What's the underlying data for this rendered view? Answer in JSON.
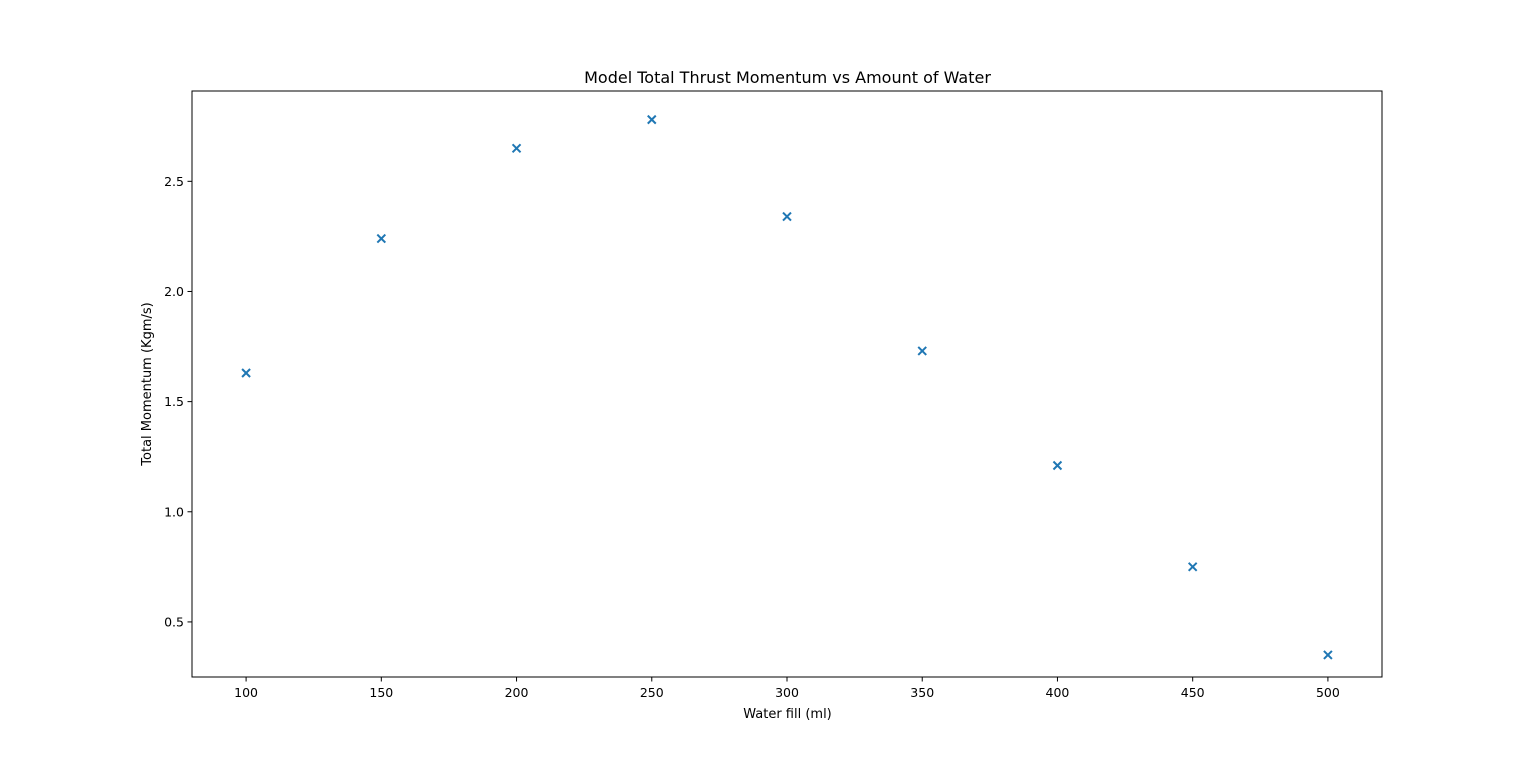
{
  "chart_data": {
    "type": "scatter",
    "title": "Model Total Thrust Momentum vs Amount of Water",
    "xlabel": "Water fill (ml)",
    "ylabel": "Total Momentum (Kgm/s)",
    "xlim": [
      80,
      520
    ],
    "ylim": [
      0.25,
      2.91
    ],
    "x_ticks": [
      100,
      150,
      200,
      250,
      300,
      350,
      400,
      450,
      500
    ],
    "x_tick_labels": [
      "100",
      "150",
      "200",
      "250",
      "300",
      "350",
      "400",
      "450",
      "500"
    ],
    "y_ticks": [
      0.5,
      1.0,
      1.5,
      2.0,
      2.5
    ],
    "y_tick_labels": [
      "0.5",
      "1.0",
      "1.5",
      "2.0",
      "2.5"
    ],
    "grid": false,
    "marker": "x",
    "color": "#1f77b4",
    "series": [
      {
        "x": [
          100,
          150,
          200,
          250,
          300,
          350,
          400,
          450,
          500
        ],
        "y": [
          1.63,
          2.24,
          2.65,
          2.78,
          2.34,
          1.73,
          1.21,
          0.75,
          0.35
        ]
      }
    ]
  }
}
